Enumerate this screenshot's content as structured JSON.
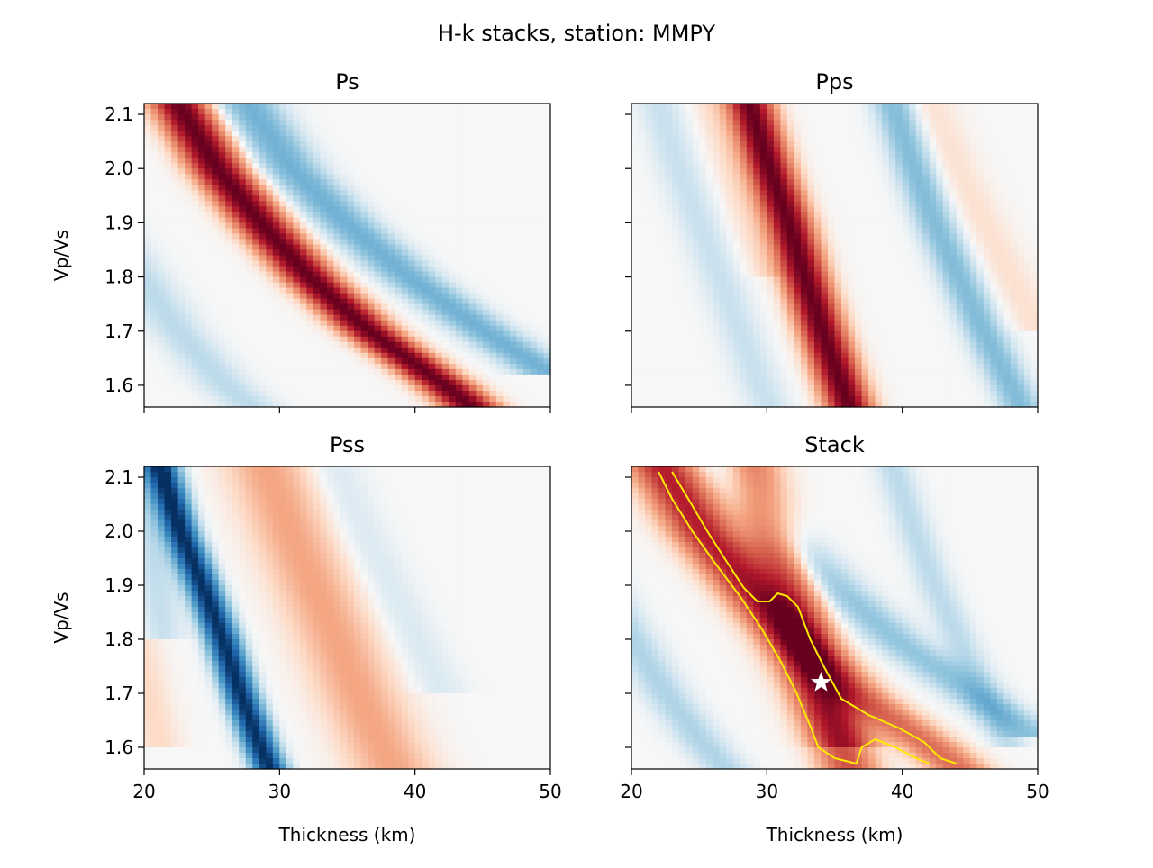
{
  "figure": {
    "title": "H-k stacks, station: MMPY"
  },
  "colors": {
    "positive": "#67001f",
    "negative": "#053061",
    "neutral": "#f7f7f7",
    "contour": "#ffea00",
    "star": "#ffffff"
  },
  "chart_data": [
    {
      "type": "heatmap",
      "title": "Ps",
      "xlabel": "",
      "ylabel": "Vp/Vs",
      "xlim": [
        20,
        50
      ],
      "ylim": [
        1.56,
        2.12
      ],
      "xticks": [
        20,
        30,
        40,
        50
      ],
      "yticks": [
        1.6,
        1.7,
        1.8,
        1.9,
        2.0,
        2.1
      ],
      "show_xticklabels": false,
      "show_yticklabels": true,
      "colormap": "RdBu_r",
      "ridges": [
        {
          "sign": 1,
          "amplitude": 1.0,
          "width_km": 1.4,
          "points": [
            [
              22.5,
              2.12
            ],
            [
              25.4,
              2.0
            ],
            [
              28.6,
              1.9
            ],
            [
              32.2,
              1.8
            ],
            [
              36.6,
              1.7
            ],
            [
              42.2,
              1.6
            ],
            [
              44.2,
              1.56
            ]
          ]
        },
        {
          "sign": -1,
          "amplitude": 0.35,
          "width_km": 1.6,
          "points": [
            [
              27.6,
              2.12
            ],
            [
              30.9,
              2.0
            ],
            [
              34.9,
              1.9
            ],
            [
              39.5,
              1.8
            ],
            [
              45.1,
              1.7
            ],
            [
              50.0,
              1.62
            ]
          ]
        },
        {
          "sign": -1,
          "amplitude": 0.15,
          "width_km": 1.5,
          "points": [
            [
              20.0,
              1.79
            ],
            [
              22.5,
              1.7
            ],
            [
              26.0,
              1.6
            ],
            [
              28.0,
              1.56
            ]
          ]
        }
      ]
    },
    {
      "type": "heatmap",
      "title": "Pps",
      "xlabel": "",
      "ylabel": "",
      "xlim": [
        20,
        50
      ],
      "ylim": [
        1.56,
        2.12
      ],
      "xticks": [
        20,
        30,
        40,
        50
      ],
      "yticks": [
        1.6,
        1.7,
        1.8,
        1.9,
        2.0,
        2.1
      ],
      "show_xticklabels": false,
      "show_yticklabels": false,
      "colormap": "RdBu_r",
      "ridges": [
        {
          "sign": 1,
          "amplitude": 1.0,
          "width_km": 1.15,
          "points": [
            [
              28.7,
              2.12
            ],
            [
              30.2,
              2.0
            ],
            [
              31.6,
              1.9
            ],
            [
              32.8,
              1.8
            ],
            [
              34.1,
              1.7
            ],
            [
              35.5,
              1.6
            ],
            [
              36.1,
              1.56
            ]
          ]
        },
        {
          "sign": -1,
          "amplitude": 0.3,
          "width_km": 1.1,
          "points": [
            [
              39.3,
              2.12
            ],
            [
              40.9,
              2.0
            ],
            [
              42.4,
              1.9
            ],
            [
              44.2,
              1.8
            ],
            [
              46.0,
              1.7
            ],
            [
              48.0,
              1.6
            ],
            [
              48.8,
              1.56
            ]
          ]
        },
        {
          "sign": -1,
          "amplitude": 0.12,
          "width_km": 1.2,
          "points": [
            [
              22.0,
              2.12
            ],
            [
              23.5,
              2.0
            ],
            [
              25.0,
              1.9
            ],
            [
              26.5,
              1.8
            ],
            [
              28.0,
              1.7
            ],
            [
              29.5,
              1.6
            ],
            [
              30.2,
              1.56
            ]
          ]
        },
        {
          "sign": 1,
          "amplitude": 0.08,
          "width_km": 1.0,
          "points": [
            [
              25.8,
              2.12
            ],
            [
              27.3,
              2.0
            ],
            [
              28.6,
              1.9
            ],
            [
              30.0,
              1.8
            ]
          ]
        },
        {
          "sign": 1,
          "amplitude": 0.08,
          "width_km": 1.3,
          "points": [
            [
              42.0,
              2.12
            ],
            [
              44.0,
              2.0
            ],
            [
              46.0,
              1.9
            ],
            [
              48.0,
              1.8
            ],
            [
              50.0,
              1.7
            ]
          ]
        }
      ]
    },
    {
      "type": "heatmap",
      "title": "Pss",
      "xlabel": "Thickness (km)",
      "ylabel": "Vp/Vs",
      "xlim": [
        20,
        50
      ],
      "ylim": [
        1.56,
        2.12
      ],
      "xticks": [
        20,
        30,
        40,
        50
      ],
      "yticks": [
        1.6,
        1.7,
        1.8,
        1.9,
        2.0,
        2.1
      ],
      "show_xticklabels": true,
      "show_yticklabels": true,
      "colormap": "RdBu_r",
      "ridges": [
        {
          "sign": -1,
          "amplitude": 1.0,
          "width_km": 0.85,
          "points": [
            [
              21.2,
              2.12
            ],
            [
              22.7,
              2.0
            ],
            [
              24.3,
              1.9
            ],
            [
              25.8,
              1.8
            ],
            [
              27.1,
              1.7
            ],
            [
              28.6,
              1.6
            ],
            [
              29.3,
              1.56
            ]
          ]
        },
        {
          "sign": 1,
          "amplitude": 0.25,
          "width_km": 2.2,
          "points": [
            [
              29.0,
              2.12
            ],
            [
              30.8,
              2.0
            ],
            [
              32.5,
              1.9
            ],
            [
              34.2,
              1.8
            ],
            [
              35.8,
              1.7
            ],
            [
              37.6,
              1.6
            ],
            [
              38.4,
              1.56
            ]
          ]
        },
        {
          "sign": -1,
          "amplitude": 0.15,
          "width_km": 1.3,
          "points": [
            [
              20.6,
              1.96
            ],
            [
              21.0,
              1.8
            ]
          ]
        },
        {
          "sign": 1,
          "amplitude": 0.1,
          "width_km": 1.2,
          "points": [
            [
              20.3,
              1.7
            ],
            [
              21.2,
              1.6
            ]
          ]
        },
        {
          "sign": -1,
          "amplitude": 0.08,
          "width_km": 1.4,
          "points": [
            [
              34.0,
              2.12
            ],
            [
              36.0,
              2.0
            ],
            [
              38.0,
              1.9
            ],
            [
              40.0,
              1.8
            ],
            [
              42.0,
              1.7
            ]
          ]
        }
      ]
    },
    {
      "type": "heatmap",
      "title": "Stack",
      "xlabel": "Thickness (km)",
      "ylabel": "",
      "xlim": [
        20,
        50
      ],
      "ylim": [
        1.56,
        2.12
      ],
      "xticks": [
        20,
        30,
        40,
        50
      ],
      "yticks": [
        1.6,
        1.7,
        1.8,
        1.9,
        2.0,
        2.1
      ],
      "show_xticklabels": true,
      "show_yticklabels": false,
      "colormap": "RdBu_r",
      "ridges": [
        {
          "sign": 1,
          "amplitude": 0.45,
          "width_km": 1.6,
          "points": [
            [
              22.5,
              2.12
            ],
            [
              25.4,
              2.0
            ],
            [
              28.6,
              1.9
            ],
            [
              32.2,
              1.8
            ],
            [
              36.6,
              1.7
            ],
            [
              42.2,
              1.6
            ],
            [
              44.2,
              1.56
            ]
          ]
        },
        {
          "sign": 1,
          "amplitude": 0.55,
          "width_km": 1.5,
          "points": [
            [
              28.7,
              2.12
            ],
            [
              30.2,
              2.0
            ],
            [
              31.6,
              1.9
            ],
            [
              32.8,
              1.8
            ],
            [
              34.1,
              1.7
            ],
            [
              35.5,
              1.6
            ],
            [
              36.1,
              1.56
            ]
          ]
        },
        {
          "sign": 1,
          "amplitude": 0.3,
          "width_km": 1.8,
          "points": [
            [
              21.8,
              2.12
            ],
            [
              25.0,
              2.0
            ],
            [
              28.5,
              1.9
            ],
            [
              31.5,
              1.8
            ],
            [
              34.0,
              1.7
            ],
            [
              36.0,
              1.6
            ]
          ]
        },
        {
          "sign": -1,
          "amplitude": 0.25,
          "width_km": 1.6,
          "points": [
            [
              27.6,
              2.12
            ],
            [
              30.9,
              2.0
            ],
            [
              34.9,
              1.9
            ],
            [
              39.5,
              1.8
            ],
            [
              45.1,
              1.7
            ],
            [
              50.0,
              1.62
            ]
          ]
        },
        {
          "sign": -1,
          "amplitude": 0.18,
          "width_km": 1.3,
          "points": [
            [
              20.3,
              1.79
            ],
            [
              22.5,
              1.7
            ],
            [
              25.5,
              1.6
            ],
            [
              27.0,
              1.56
            ]
          ]
        },
        {
          "sign": -1,
          "amplitude": 0.15,
          "width_km": 1.0,
          "points": [
            [
              39.3,
              2.12
            ],
            [
              40.9,
              2.0
            ],
            [
              42.4,
              1.9
            ],
            [
              44.2,
              1.8
            ],
            [
              46.0,
              1.7
            ],
            [
              48.0,
              1.6
            ]
          ]
        }
      ],
      "contours": [
        {
          "name": "contour-left",
          "points": [
            [
              22.0,
              2.11
            ],
            [
              23.0,
              2.06
            ],
            [
              24.5,
              2.0
            ],
            [
              26.2,
              1.94
            ],
            [
              28.0,
              1.88
            ],
            [
              29.6,
              1.82
            ],
            [
              31.0,
              1.76
            ],
            [
              32.2,
              1.7
            ],
            [
              33.2,
              1.64
            ],
            [
              33.8,
              1.6
            ],
            [
              35.0,
              1.58
            ],
            [
              36.6,
              1.57
            ],
            [
              37.0,
              1.6
            ],
            [
              38.0,
              1.615
            ],
            [
              39.5,
              1.6
            ],
            [
              41.0,
              1.58
            ],
            [
              42.0,
              1.57
            ]
          ]
        },
        {
          "name": "contour-right",
          "points": [
            [
              23.0,
              2.11
            ],
            [
              24.2,
              2.06
            ],
            [
              25.6,
              2.0
            ],
            [
              27.0,
              1.945
            ],
            [
              28.3,
              1.895
            ],
            [
              29.3,
              1.87
            ],
            [
              30.2,
              1.87
            ],
            [
              30.8,
              1.885
            ],
            [
              31.5,
              1.88
            ],
            [
              32.3,
              1.86
            ],
            [
              33.2,
              1.8
            ],
            [
              34.2,
              1.75
            ],
            [
              35.5,
              1.69
            ],
            [
              37.5,
              1.66
            ],
            [
              39.8,
              1.635
            ],
            [
              41.6,
              1.61
            ],
            [
              42.8,
              1.58
            ],
            [
              44.0,
              1.57
            ]
          ]
        }
      ],
      "best_estimate": {
        "x": 34.0,
        "y": 1.72,
        "marker": "star"
      }
    }
  ]
}
